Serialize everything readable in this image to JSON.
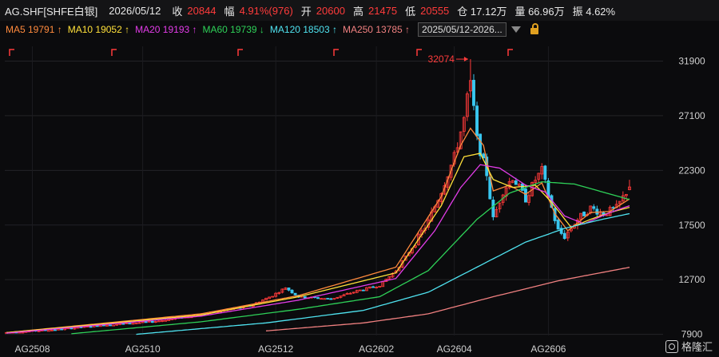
{
  "header": {
    "symbol": "AG.SHF[SHFE白银]",
    "date": "2026/05/12",
    "close_label": "收",
    "close": "20844",
    "amp_label": "幅",
    "amp": "4.91%(976)",
    "open_label": "开",
    "open": "20600",
    "high_label": "高",
    "high": "21475",
    "low_label": "低",
    "low": "20555",
    "oi_label": "仓 17.12万",
    "vol_label": "量 66.96万",
    "swing_label": "振 4.62%"
  },
  "ma_legend": [
    {
      "text": "MA5 19791 ↑",
      "color": "#ff8a3d"
    },
    {
      "text": "MA10 19052 ↑",
      "color": "#ffe03a"
    },
    {
      "text": "MA20 19193 ↑",
      "color": "#e23ce8"
    },
    {
      "text": "MA60 19739 ↓",
      "color": "#2ed158"
    },
    {
      "text": "MA120 18503 ↑",
      "color": "#4fe3f0"
    },
    {
      "text": "MA250 13785 ↑",
      "color": "#f08080"
    }
  ],
  "range_select": "2025/05/12-2026...",
  "watermark": "格隆汇",
  "chart_data": {
    "type": "candlestick",
    "ylim": [
      7800,
      33200
    ],
    "yticks": [
      31900,
      27100,
      22300,
      17500,
      12700,
      7900
    ],
    "xticks": [
      {
        "label": "AG2508",
        "index": 8
      },
      {
        "label": "AG2510",
        "index": 42
      },
      {
        "label": "AG2512",
        "index": 83
      },
      {
        "label": "AG2602",
        "index": 114
      },
      {
        "label": "AG2604",
        "index": 138
      },
      {
        "label": "AG2606",
        "index": 167
      }
    ],
    "peak_label": "32074",
    "peak": 32074,
    "peak_index": 143,
    "n_bars": 193,
    "last_bar": {
      "open": 20600,
      "high": 21475,
      "low": 20555,
      "close": 20844
    },
    "up_color": "#ff3a3a",
    "down_color": "#39c7f0",
    "anchors": [
      [
        0,
        8050
      ],
      [
        15,
        8300
      ],
      [
        30,
        8700
      ],
      [
        45,
        9000
      ],
      [
        55,
        9400
      ],
      [
        65,
        9900
      ],
      [
        75,
        10400
      ],
      [
        82,
        11300
      ],
      [
        86,
        12000
      ],
      [
        90,
        11200
      ],
      [
        100,
        11000
      ],
      [
        108,
        11700
      ],
      [
        115,
        12200
      ],
      [
        120,
        13500
      ],
      [
        125,
        15500
      ],
      [
        130,
        17800
      ],
      [
        134,
        20500
      ],
      [
        138,
        23500
      ],
      [
        141,
        26800
      ],
      [
        143,
        30500
      ],
      [
        145,
        25000
      ],
      [
        148,
        22000
      ],
      [
        150,
        18000
      ],
      [
        153,
        20500
      ],
      [
        156,
        21700
      ],
      [
        160,
        19800
      ],
      [
        163,
        21500
      ],
      [
        165,
        22300
      ],
      [
        168,
        19000
      ],
      [
        170,
        17000
      ],
      [
        172,
        16500
      ],
      [
        176,
        18000
      ],
      [
        180,
        19000
      ],
      [
        184,
        18500
      ],
      [
        188,
        19000
      ],
      [
        192,
        20844
      ]
    ],
    "ma_series": [
      {
        "name": "MA5",
        "color": "#ff8a3d",
        "anchors": [
          [
            0,
            8050
          ],
          [
            60,
            9700
          ],
          [
            90,
            11300
          ],
          [
            120,
            13800
          ],
          [
            134,
            20000
          ],
          [
            140,
            24500
          ],
          [
            143,
            26000
          ],
          [
            147,
            24500
          ],
          [
            150,
            20500
          ],
          [
            155,
            21000
          ],
          [
            160,
            20200
          ],
          [
            165,
            21200
          ],
          [
            169,
            18500
          ],
          [
            173,
            17000
          ],
          [
            180,
            18600
          ],
          [
            186,
            18700
          ],
          [
            192,
            19791
          ]
        ]
      },
      {
        "name": "MA10",
        "color": "#ffe03a",
        "anchors": [
          [
            0,
            8050
          ],
          [
            60,
            9600
          ],
          [
            90,
            11200
          ],
          [
            120,
            13300
          ],
          [
            134,
            19200
          ],
          [
            141,
            23500
          ],
          [
            146,
            23800
          ],
          [
            150,
            21500
          ],
          [
            156,
            20800
          ],
          [
            163,
            21000
          ],
          [
            168,
            19500
          ],
          [
            174,
            17300
          ],
          [
            180,
            18000
          ],
          [
            186,
            18600
          ],
          [
            192,
            19052
          ]
        ]
      },
      {
        "name": "MA20",
        "color": "#e23ce8",
        "anchors": [
          [
            0,
            8000
          ],
          [
            60,
            9500
          ],
          [
            90,
            10900
          ],
          [
            120,
            12800
          ],
          [
            132,
            17000
          ],
          [
            140,
            20800
          ],
          [
            146,
            22800
          ],
          [
            152,
            22500
          ],
          [
            160,
            21000
          ],
          [
            166,
            20400
          ],
          [
            172,
            18300
          ],
          [
            178,
            17600
          ],
          [
            186,
            18600
          ],
          [
            192,
            19193
          ]
        ]
      },
      {
        "name": "MA60",
        "color": "#2ed158",
        "anchors": [
          [
            20,
            7950
          ],
          [
            60,
            9000
          ],
          [
            90,
            10100
          ],
          [
            115,
            11200
          ],
          [
            130,
            13500
          ],
          [
            145,
            18000
          ],
          [
            155,
            20300
          ],
          [
            165,
            21300
          ],
          [
            175,
            21100
          ],
          [
            185,
            20300
          ],
          [
            192,
            19739
          ]
        ]
      },
      {
        "name": "MA120",
        "color": "#4fe3f0",
        "anchors": [
          [
            40,
            7900
          ],
          [
            80,
            8900
          ],
          [
            110,
            10000
          ],
          [
            130,
            11600
          ],
          [
            145,
            13800
          ],
          [
            160,
            16000
          ],
          [
            172,
            17200
          ],
          [
            182,
            17900
          ],
          [
            192,
            18503
          ]
        ]
      },
      {
        "name": "MA250",
        "color": "#f08080",
        "anchors": [
          [
            80,
            8200
          ],
          [
            110,
            8900
          ],
          [
            130,
            9700
          ],
          [
            150,
            11200
          ],
          [
            170,
            12600
          ],
          [
            192,
            13785
          ]
        ]
      }
    ]
  }
}
